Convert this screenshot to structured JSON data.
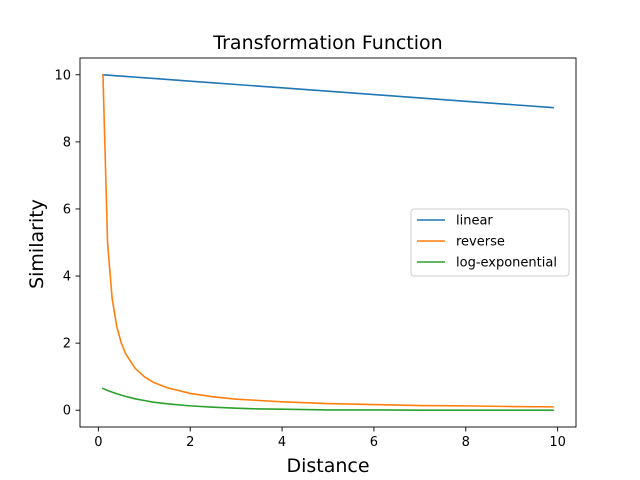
{
  "chart_data": {
    "type": "line",
    "title": "Transformation Function",
    "xlabel": "Distance",
    "ylabel": "Similarity",
    "xlim": [
      -0.4,
      10.4
    ],
    "ylim": [
      -0.5,
      10.5
    ],
    "xticks": [
      0,
      2,
      4,
      6,
      8,
      10
    ],
    "yticks": [
      0,
      2,
      4,
      6,
      8,
      10
    ],
    "grid": false,
    "legend_position": "center-right",
    "x": [
      0.1,
      0.2,
      0.3,
      0.4,
      0.5,
      0.6,
      0.8,
      1.0,
      1.2,
      1.5,
      2.0,
      2.5,
      3.0,
      3.5,
      4.0,
      5.0,
      6.0,
      7.0,
      8.0,
      9.0,
      9.9
    ],
    "series": [
      {
        "name": "linear",
        "color": "#1f77b4",
        "values": [
          10.0,
          9.99,
          9.98,
          9.97,
          9.96,
          9.95,
          9.93,
          9.91,
          9.89,
          9.86,
          9.81,
          9.76,
          9.71,
          9.66,
          9.61,
          9.51,
          9.41,
          9.31,
          9.21,
          9.11,
          9.02
        ]
      },
      {
        "name": "reverse",
        "color": "#ff7f0e",
        "values": [
          10.0,
          5.0,
          3.33,
          2.5,
          2.0,
          1.67,
          1.25,
          1.0,
          0.83,
          0.67,
          0.5,
          0.4,
          0.33,
          0.29,
          0.25,
          0.2,
          0.17,
          0.14,
          0.13,
          0.11,
          0.1
        ]
      },
      {
        "name": "log-exponential",
        "color": "#2ca02c",
        "values": [
          0.65,
          0.59,
          0.54,
          0.49,
          0.45,
          0.41,
          0.34,
          0.29,
          0.24,
          0.19,
          0.13,
          0.09,
          0.06,
          0.04,
          0.03,
          0.01,
          0.01,
          0.0,
          0.0,
          0.0,
          0.0
        ]
      }
    ]
  }
}
